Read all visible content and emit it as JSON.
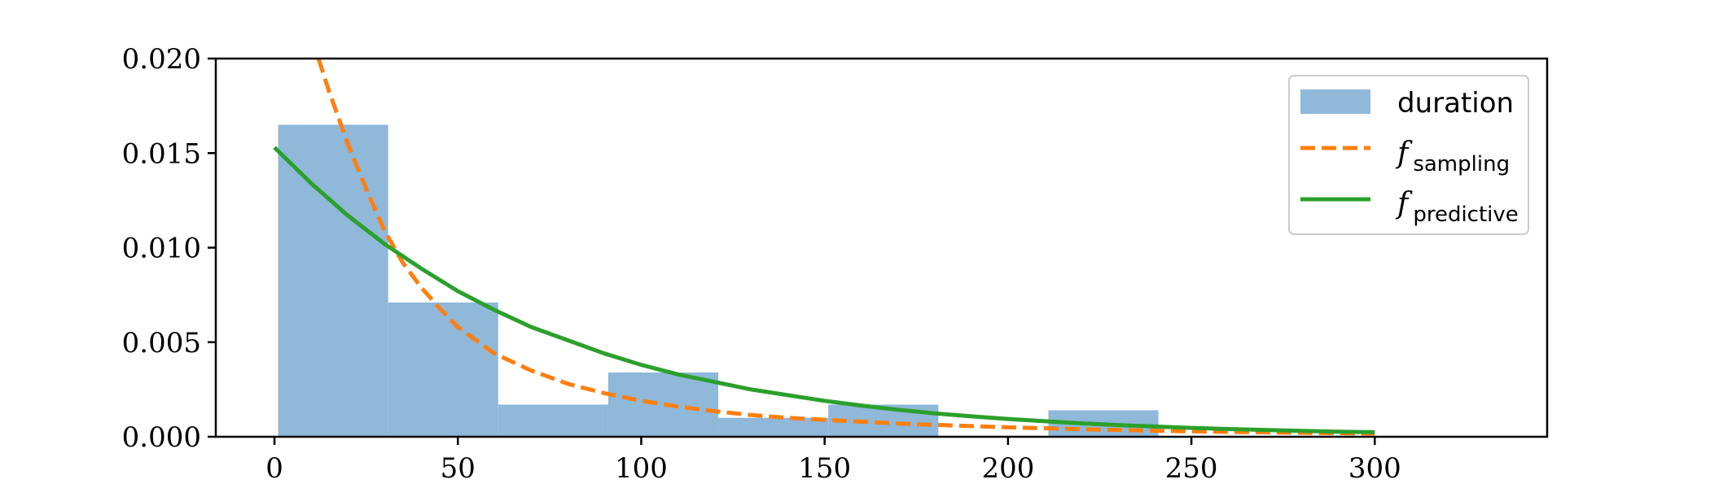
{
  "chart_data": {
    "type": "bar",
    "title": "",
    "xlabel": "",
    "ylabel": "",
    "xlim": [
      -16,
      347
    ],
    "ylim": [
      0,
      0.02
    ],
    "xticks": [
      "0",
      "50",
      "100",
      "150",
      "200",
      "250",
      "300"
    ],
    "xtick_values": [
      0,
      50,
      100,
      150,
      200,
      250,
      300
    ],
    "yticks": [
      "0.000",
      "0.005",
      "0.010",
      "0.015",
      "0.020"
    ],
    "ytick_values": [
      0,
      0.005,
      0.01,
      0.015,
      0.02
    ],
    "grid": false,
    "legend_position": "top-right",
    "histogram": {
      "name": "duration",
      "color": "#8fb8d9",
      "bin_edges": [
        1,
        31,
        61,
        91,
        121,
        151,
        181,
        211,
        241
      ],
      "values": [
        0.0165,
        0.0071,
        0.0017,
        0.0034,
        0.001,
        0.0017,
        0.0,
        0.0014
      ]
    },
    "series": [
      {
        "name_base": "f",
        "name_sub": "sampling",
        "style": "dashed",
        "color": "#ff7f0e",
        "x": [
          12,
          15,
          20,
          25,
          30,
          35,
          40,
          45,
          50,
          60,
          70,
          80,
          90,
          100,
          110,
          120,
          130,
          140,
          150,
          160,
          170,
          180,
          200,
          220,
          240,
          260,
          280,
          300
        ],
        "y": [
          0.02,
          0.0182,
          0.0155,
          0.0131,
          0.0109,
          0.0092,
          0.0079,
          0.0068,
          0.0058,
          0.0044,
          0.0035,
          0.0028,
          0.0023,
          0.0019,
          0.0016,
          0.00135,
          0.00115,
          0.001,
          0.0009,
          0.0008,
          0.0007,
          0.00063,
          0.0005,
          0.0004,
          0.00032,
          0.00026,
          0.00021,
          0.00017
        ]
      },
      {
        "name_base": "f",
        "name_sub": "predictive",
        "style": "solid",
        "color": "#2ca02c",
        "x": [
          0,
          10,
          20,
          30,
          40,
          50,
          60,
          70,
          80,
          90,
          100,
          110,
          120,
          130,
          140,
          150,
          160,
          170,
          180,
          190,
          200,
          210,
          220,
          230,
          240,
          250,
          260,
          270,
          280,
          290,
          300
        ],
        "y": [
          0.0153,
          0.0134,
          0.0117,
          0.0102,
          0.0089,
          0.0077,
          0.0067,
          0.0058,
          0.0051,
          0.0044,
          0.0038,
          0.0033,
          0.0029,
          0.0025,
          0.0022,
          0.0019,
          0.00165,
          0.00143,
          0.00124,
          0.00108,
          0.00094,
          0.00082,
          0.00071,
          0.00062,
          0.00054,
          0.00047,
          0.00041,
          0.00036,
          0.00031,
          0.00027,
          0.00024
        ]
      }
    ]
  }
}
